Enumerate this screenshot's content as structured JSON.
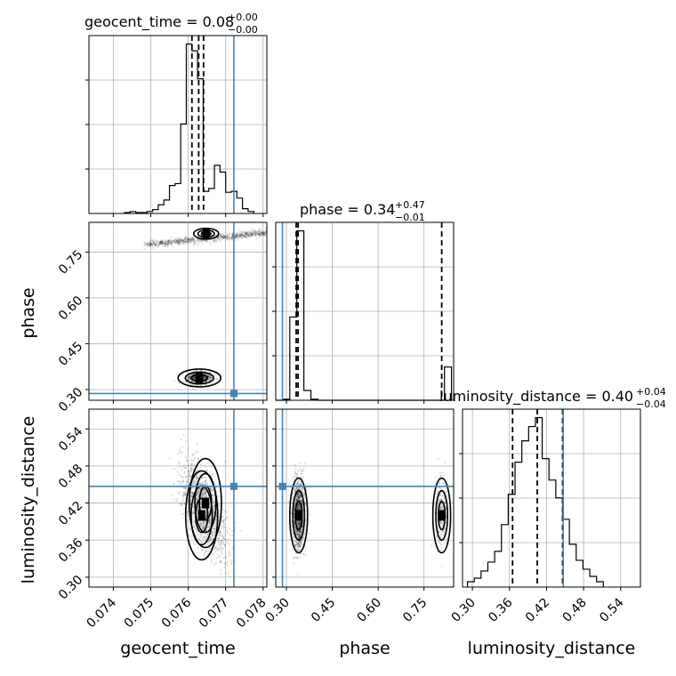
{
  "chart_data": {
    "type": "corner",
    "parameters": [
      "geocent_time",
      "phase",
      "luminosity_distance"
    ],
    "ranges": {
      "geocent_time": [
        0.07335,
        0.0781
      ],
      "phase": [
        0.265,
        0.847
      ],
      "luminosity_distance": [
        0.284,
        0.572
      ]
    },
    "ticks": {
      "geocent_time": [
        "0.074",
        "0.075",
        "0.076",
        "0.077",
        "0.078"
      ],
      "phase": [
        "0.30",
        "0.45",
        "0.60",
        "0.75"
      ],
      "luminosity_distance": [
        "0.30",
        "0.36",
        "0.42",
        "0.48",
        "0.54"
      ]
    },
    "tick_values": {
      "geocent_time": [
        0.074,
        0.075,
        0.076,
        0.077,
        0.078
      ],
      "phase": [
        0.3,
        0.45,
        0.6,
        0.75
      ],
      "luminosity_distance": [
        0.3,
        0.36,
        0.42,
        0.48,
        0.54
      ]
    },
    "titles": {
      "geocent_time": {
        "base": "geocent_time = 0.08",
        "plus": "+0.00",
        "minus": "−0.00"
      },
      "phase": {
        "base": "phase = 0.34",
        "plus": "+0.47",
        "minus": "−0.01"
      },
      "luminosity_distance": {
        "base": "luminosity_distance = 0.40",
        "plus": "+0.04",
        "minus": "−0.04"
      }
    },
    "truths": {
      "geocent_time": 0.07722,
      "phase": 0.287,
      "luminosity_distance": 0.447
    },
    "quantiles": {
      "geocent_time": [
        0.0761,
        0.07628,
        0.07641
      ],
      "phase": [
        0.332,
        0.338,
        0.808
      ],
      "luminosity_distance": [
        0.365,
        0.405,
        0.446
      ]
    },
    "histograms": {
      "geocent_time": {
        "edges": [
          0.0743,
          0.07445,
          0.0746,
          0.07475,
          0.0749,
          0.07505,
          0.0752,
          0.07535,
          0.0755,
          0.07565,
          0.0758,
          0.07595,
          0.0761,
          0.07625,
          0.0764,
          0.07655,
          0.0767,
          0.07685,
          0.077,
          0.07715,
          0.0773,
          0.07745,
          0.0776,
          0.07775
        ],
        "counts": [
          1,
          2,
          1,
          1,
          2,
          4,
          9,
          14,
          29,
          31,
          93,
          176,
          169,
          140,
          23,
          26,
          50,
          43,
          22,
          23,
          16,
          5,
          2
        ]
      },
      "phase": {
        "edges": [
          0.265,
          0.288,
          0.311,
          0.334,
          0.357,
          0.38,
          0.403,
          0.426,
          0.449,
          0.472,
          0.495,
          0.518,
          0.541,
          0.564,
          0.587,
          0.61,
          0.633,
          0.656,
          0.679,
          0.702,
          0.725,
          0.748,
          0.771,
          0.794,
          0.817,
          0.84
        ],
        "counts": [
          0,
          1,
          85,
          173,
          10,
          1,
          0,
          0,
          0,
          0,
          0,
          0,
          0,
          0,
          0,
          0,
          0,
          0,
          0,
          0,
          0,
          0,
          0,
          0,
          34
        ]
      },
      "luminosity_distance": {
        "edges": [
          0.292,
          0.303,
          0.314,
          0.325,
          0.336,
          0.347,
          0.358,
          0.369,
          0.38,
          0.391,
          0.402,
          0.413,
          0.424,
          0.435,
          0.446,
          0.457,
          0.468,
          0.479,
          0.49,
          0.501,
          0.512
        ],
        "counts": [
          3,
          5,
          9,
          14,
          20,
          35,
          52,
          70,
          82,
          90,
          95,
          72,
          60,
          50,
          38,
          24,
          15,
          10,
          6,
          3
        ]
      }
    },
    "peaks": {
      "geocent_time_phase": [
        [
          0.07648,
          0.81,
          0.2
        ],
        [
          0.0763,
          0.338,
          0.18
        ]
      ],
      "geocent_time_luminosity_distance": [
        [
          0.07646,
          0.42,
          0.9
        ],
        [
          0.07636,
          0.4,
          0.7
        ]
      ],
      "phase_luminosity_distance": [
        [
          0.34,
          0.4,
          0.8
        ],
        [
          0.808,
          0.4,
          0.2
        ]
      ]
    }
  }
}
